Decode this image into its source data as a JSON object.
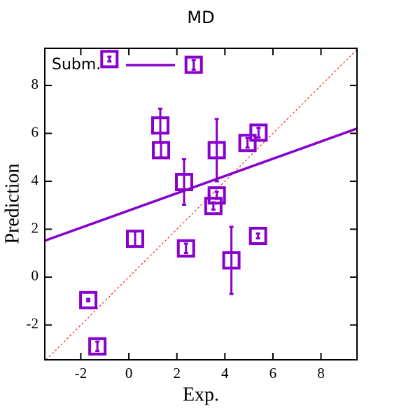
{
  "chart_data": {
    "type": "scatter",
    "title": "MD",
    "x_label": "Exp.",
    "y_label": "Prediction",
    "series": [
      {
        "name": "Subm.",
        "color": "#8800cc",
        "x": [
          -0.81,
          2.7,
          1.31,
          1.34,
          2.3,
          3.66,
          4.94,
          5.4,
          3.66,
          3.52,
          0.26,
          2.38,
          5.38,
          4.27,
          -1.69,
          -1.31
        ],
        "values": [
          9.1,
          8.86,
          6.33,
          5.3,
          3.97,
          5.3,
          5.6,
          6.03,
          3.41,
          2.97,
          1.6,
          1.2,
          1.72,
          0.7,
          -0.96,
          -2.89
        ],
        "errors": [
          0.1,
          0.2,
          0.7,
          0.3,
          0.95,
          1.3,
          0.2,
          0.2,
          0.15,
          0.15,
          0.3,
          0.2,
          0.1,
          1.4,
          0.05,
          0.2
        ]
      }
    ],
    "fit": {
      "x": [
        -3.5,
        9.5
      ],
      "y": [
        1.52,
        6.2
      ]
    },
    "identity_line": true,
    "legend": "upper left",
    "xlim": [
      -3.5,
      9.5
    ],
    "ylim": [
      -3.45,
      9.55
    ],
    "xticks": [
      -2,
      0,
      2,
      4,
      6,
      8
    ],
    "yticks": [
      -2,
      0,
      2,
      4,
      6,
      8
    ]
  }
}
